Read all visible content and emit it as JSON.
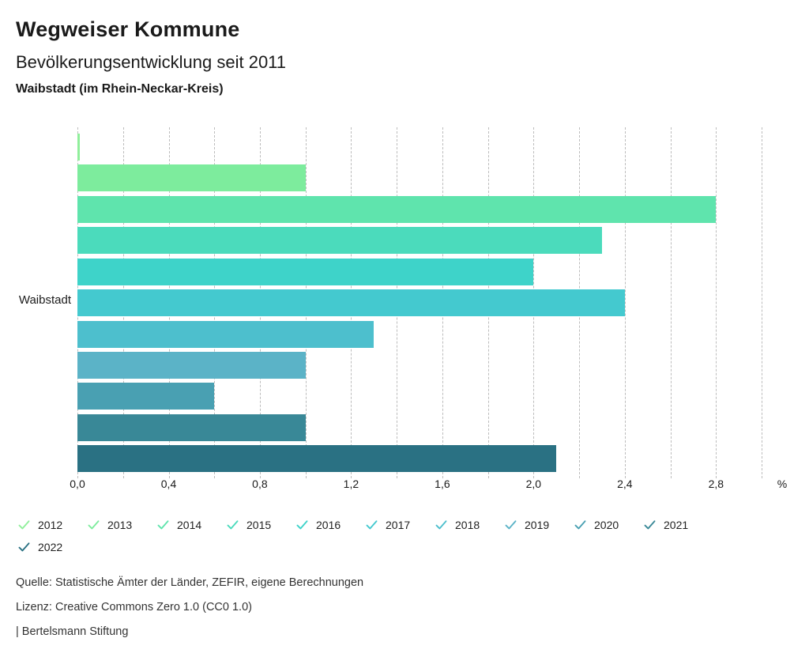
{
  "header": {
    "title": "Wegweiser Kommune",
    "subtitle": "Bevölkerungsentwicklung seit 2011",
    "region": "Waibstadt (im Rhein-Neckar-Kreis)"
  },
  "chart_data": {
    "type": "bar",
    "orientation": "horizontal",
    "title": "Bevölkerungsentwicklung seit 2011",
    "group_label": "Waibstadt",
    "unit_label": "%",
    "xlim": [
      0,
      3.0
    ],
    "gridline_step": 0.2,
    "grid": "dashed-vertical",
    "x_tick_values": [
      0,
      0.4,
      0.8,
      1.2,
      1.6,
      2.0,
      2.4,
      2.8
    ],
    "x_tick_labels": [
      "0,0",
      "0,4",
      "0,8",
      "1,2",
      "1,6",
      "2,0",
      "2,4",
      "2,8"
    ],
    "legend_position": "bottom",
    "series": [
      {
        "name": "2012",
        "value": 0.0,
        "color": "#90EF9B"
      },
      {
        "name": "2013",
        "value": 1.0,
        "color": "#7DEC9D"
      },
      {
        "name": "2014",
        "value": 2.8,
        "color": "#5FE4AD"
      },
      {
        "name": "2015",
        "value": 2.3,
        "color": "#4BDBBC"
      },
      {
        "name": "2016",
        "value": 2.0,
        "color": "#3ED3C9"
      },
      {
        "name": "2017",
        "value": 2.4,
        "color": "#44C9CF"
      },
      {
        "name": "2018",
        "value": 1.3,
        "color": "#4DBFCD"
      },
      {
        "name": "2019",
        "value": 1.0,
        "color": "#5BB3C7"
      },
      {
        "name": "2020",
        "value": 0.6,
        "color": "#49A0B2"
      },
      {
        "name": "2021",
        "value": 1.0,
        "color": "#398897"
      },
      {
        "name": "2022",
        "value": 2.1,
        "color": "#2A7183"
      }
    ]
  },
  "footer": {
    "source": "Quelle: Statistische Ämter der Länder, ZEFIR, eigene Berechnungen",
    "license": "Lizenz: Creative Commons Zero 1.0 (CC0 1.0)",
    "brand": "| Bertelsmann Stiftung"
  }
}
